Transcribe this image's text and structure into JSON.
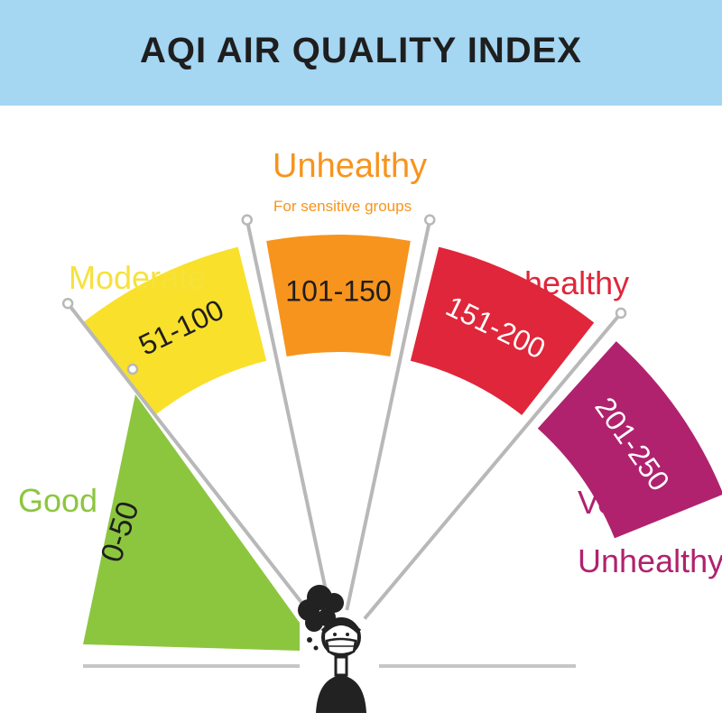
{
  "title": "AQI AIR QUALITY INDEX",
  "colors": {
    "header_bg": "#a5d6f2",
    "good": "#8cc63f",
    "moderate": "#f9e02b",
    "unhealthy_sensitive": "#f7941d",
    "unhealthy": "#e0263a",
    "very_unhealthy": "#b0226e",
    "needle": "#b8b8b8"
  },
  "categories": [
    {
      "label": "Good",
      "range": "0-50",
      "color": "#8cc63f",
      "label_color": "#8cc63f"
    },
    {
      "label": "Moderate",
      "range": "51-100",
      "color": "#f9e02b",
      "label_color": "#f6e23a"
    },
    {
      "label": "Unhealthy",
      "sublabel": "For sensitive groups",
      "range": "101-150",
      "color": "#f7941d",
      "label_color": "#f7941d"
    },
    {
      "label": "Unhealthy",
      "range": "151-200",
      "color": "#e0263a",
      "label_color": "#e0263a"
    },
    {
      "label_line1": "Very",
      "label_line2": "Unhealthy",
      "range": "201-250",
      "color": "#b0226e",
      "label_color": "#b0226e"
    }
  ],
  "icons": [
    "masked-person-icon",
    "smog-cloud-icon"
  ]
}
